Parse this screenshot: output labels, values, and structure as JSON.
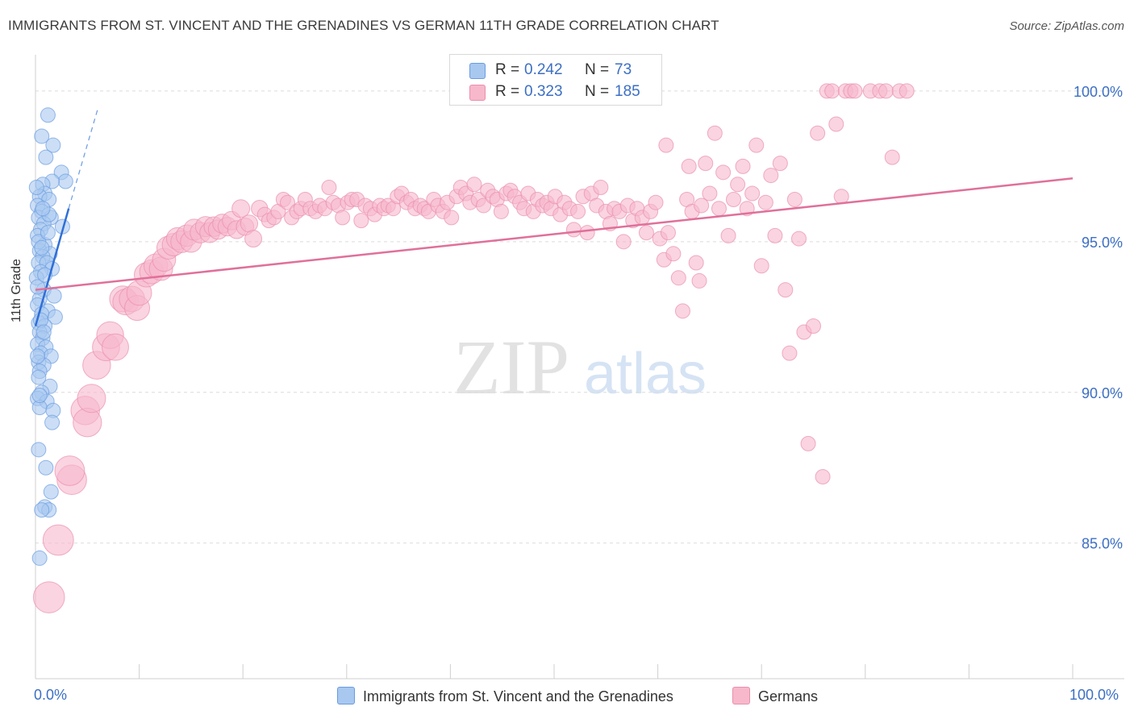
{
  "header": {
    "title": "IMMIGRANTS FROM ST. VINCENT AND THE GRENADINES VS GERMAN 11TH GRADE CORRELATION CHART",
    "source": "Source: ZipAtlas.com"
  },
  "watermark": {
    "zip": "ZIP",
    "atlas": "atlas"
  },
  "legend": {
    "r_label": "R =",
    "n_label": "N =",
    "rows": [
      {
        "r": "0.242",
        "n": "73",
        "color": "#a8c8f0",
        "border": "#6a9be0"
      },
      {
        "r": "0.323",
        "n": "185",
        "color": "#f7b8cb",
        "border": "#ea8fae"
      }
    ]
  },
  "chart_data": {
    "type": "scatter",
    "title": "IMMIGRANTS FROM ST. VINCENT AND THE GRENADINES VS GERMAN 11TH GRADE CORRELATION CHART",
    "xlabel": "",
    "ylabel": "11th Grade",
    "xlim": [
      0,
      100
    ],
    "ylim": [
      80.5,
      101.2
    ],
    "x_ticks": [
      0,
      10,
      20,
      30,
      40,
      50,
      60,
      70,
      80,
      90,
      100
    ],
    "x_tick_labels": [
      "0.0%",
      "100.0%"
    ],
    "y_ticks": [
      85,
      90,
      95,
      100
    ],
    "y_tick_labels": [
      "85.0%",
      "90.0%",
      "95.0%",
      "100.0%"
    ],
    "grid": true,
    "series": [
      {
        "name": "Immigrants from St. Vincent and the Grenadines",
        "color": "#6a9be0",
        "fill": "#a8c8f0",
        "trend": {
          "x": [
            0,
            3.2
          ],
          "y": [
            92.2,
            96.1
          ],
          "dash_to": [
            6.0,
            99.4
          ]
        },
        "points": [
          [
            1.2,
            99.2
          ],
          [
            0.6,
            98.5
          ],
          [
            1.7,
            98.2
          ],
          [
            1.0,
            97.8
          ],
          [
            2.5,
            97.3
          ],
          [
            2.9,
            97.0
          ],
          [
            1.6,
            97.0
          ],
          [
            0.7,
            96.9
          ],
          [
            0.9,
            96.6
          ],
          [
            0.4,
            96.5
          ],
          [
            1.3,
            96.4
          ],
          [
            0.2,
            96.2
          ],
          [
            0.6,
            96.0
          ],
          [
            1.5,
            95.8
          ],
          [
            0.3,
            95.8
          ],
          [
            0.8,
            95.6
          ],
          [
            2.6,
            95.5
          ],
          [
            0.5,
            95.4
          ],
          [
            0.2,
            95.2
          ],
          [
            0.9,
            94.9
          ],
          [
            0.4,
            94.7
          ],
          [
            1.4,
            94.6
          ],
          [
            0.7,
            94.5
          ],
          [
            0.3,
            94.3
          ],
          [
            1.1,
            94.3
          ],
          [
            1.6,
            94.1
          ],
          [
            0.5,
            94.0
          ],
          [
            0.1,
            93.8
          ],
          [
            0.8,
            93.4
          ],
          [
            0.4,
            93.1
          ],
          [
            0.2,
            92.9
          ],
          [
            1.2,
            92.7
          ],
          [
            0.6,
            92.6
          ],
          [
            1.9,
            92.5
          ],
          [
            0.3,
            92.3
          ],
          [
            0.9,
            92.2
          ],
          [
            0.4,
            92.0
          ],
          [
            0.7,
            91.8
          ],
          [
            0.2,
            91.6
          ],
          [
            1.0,
            91.5
          ],
          [
            0.5,
            91.3
          ],
          [
            1.5,
            91.2
          ],
          [
            0.3,
            91.0
          ],
          [
            0.8,
            90.9
          ],
          [
            0.4,
            90.7
          ],
          [
            1.4,
            90.2
          ],
          [
            0.6,
            90.0
          ],
          [
            0.2,
            89.8
          ],
          [
            1.1,
            89.7
          ],
          [
            0.4,
            89.5
          ],
          [
            1.7,
            89.4
          ],
          [
            1.6,
            89.0
          ],
          [
            0.3,
            88.1
          ],
          [
            1.0,
            87.5
          ],
          [
            1.5,
            86.7
          ],
          [
            0.9,
            86.2
          ],
          [
            1.3,
            86.1
          ],
          [
            0.6,
            86.1
          ],
          [
            0.4,
            84.5
          ],
          [
            0.2,
            93.5
          ],
          [
            1.8,
            93.2
          ],
          [
            0.5,
            92.4
          ],
          [
            0.2,
            91.2
          ],
          [
            0.9,
            93.9
          ],
          [
            0.3,
            95.0
          ],
          [
            1.2,
            95.3
          ],
          [
            0.6,
            94.8
          ],
          [
            0.1,
            96.8
          ],
          [
            0.8,
            92.0
          ],
          [
            0.3,
            90.5
          ],
          [
            1.3,
            95.9
          ],
          [
            0.7,
            96.1
          ],
          [
            0.4,
            89.9
          ]
        ]
      },
      {
        "name": "Germans",
        "color": "#ea8fae",
        "fill": "#f7b8cb",
        "trend": {
          "x": [
            0,
            100
          ],
          "y": [
            93.4,
            97.1
          ]
        },
        "points": [
          [
            1.3,
            83.2
          ],
          [
            2.2,
            85.1
          ],
          [
            3.5,
            87.1
          ],
          [
            3.3,
            87.4
          ],
          [
            4.8,
            89.4
          ],
          [
            5.0,
            89.0
          ],
          [
            5.4,
            89.8
          ],
          [
            5.9,
            90.9
          ],
          [
            6.8,
            91.5
          ],
          [
            7.2,
            91.9
          ],
          [
            7.7,
            91.5
          ],
          [
            8.4,
            93.1
          ],
          [
            8.7,
            93.0
          ],
          [
            9.3,
            93.1
          ],
          [
            9.8,
            92.8
          ],
          [
            10.0,
            93.3
          ],
          [
            10.7,
            93.9
          ],
          [
            11.2,
            94.0
          ],
          [
            11.6,
            94.2
          ],
          [
            12.1,
            94.1
          ],
          [
            12.4,
            94.4
          ],
          [
            12.8,
            94.8
          ],
          [
            13.3,
            94.9
          ],
          [
            13.7,
            95.1
          ],
          [
            14.1,
            95.0
          ],
          [
            14.6,
            95.2
          ],
          [
            15.0,
            95.0
          ],
          [
            15.3,
            95.4
          ],
          [
            15.9,
            95.3
          ],
          [
            16.4,
            95.5
          ],
          [
            16.8,
            95.3
          ],
          [
            17.2,
            95.5
          ],
          [
            17.6,
            95.4
          ],
          [
            18.0,
            95.6
          ],
          [
            18.5,
            95.5
          ],
          [
            18.9,
            95.7
          ],
          [
            19.4,
            95.4
          ],
          [
            19.8,
            96.1
          ],
          [
            20.2,
            95.5
          ],
          [
            20.6,
            95.6
          ],
          [
            21.0,
            95.1
          ],
          [
            21.6,
            96.1
          ],
          [
            22.1,
            95.9
          ],
          [
            22.5,
            95.7
          ],
          [
            23.0,
            95.8
          ],
          [
            23.4,
            96.0
          ],
          [
            23.9,
            96.4
          ],
          [
            24.3,
            96.3
          ],
          [
            24.7,
            95.8
          ],
          [
            25.2,
            96.0
          ],
          [
            25.6,
            96.1
          ],
          [
            26.0,
            96.4
          ],
          [
            26.5,
            96.1
          ],
          [
            27.0,
            96.0
          ],
          [
            27.4,
            96.2
          ],
          [
            27.9,
            96.1
          ],
          [
            28.3,
            96.8
          ],
          [
            28.7,
            96.3
          ],
          [
            29.2,
            96.2
          ],
          [
            29.6,
            95.8
          ],
          [
            30.1,
            96.3
          ],
          [
            30.5,
            96.4
          ],
          [
            31.0,
            96.4
          ],
          [
            31.4,
            95.7
          ],
          [
            31.8,
            96.2
          ],
          [
            32.3,
            96.1
          ],
          [
            32.7,
            95.9
          ],
          [
            33.2,
            96.2
          ],
          [
            33.6,
            96.1
          ],
          [
            34.0,
            96.2
          ],
          [
            34.5,
            96.1
          ],
          [
            34.9,
            96.5
          ],
          [
            35.3,
            96.6
          ],
          [
            35.8,
            96.3
          ],
          [
            36.2,
            96.4
          ],
          [
            36.6,
            96.1
          ],
          [
            37.1,
            96.2
          ],
          [
            37.5,
            96.1
          ],
          [
            37.9,
            96.0
          ],
          [
            38.4,
            96.4
          ],
          [
            38.8,
            96.2
          ],
          [
            39.3,
            96.0
          ],
          [
            39.7,
            96.3
          ],
          [
            40.1,
            95.8
          ],
          [
            40.6,
            96.5
          ],
          [
            41.0,
            96.8
          ],
          [
            41.5,
            96.6
          ],
          [
            41.9,
            96.3
          ],
          [
            42.3,
            96.9
          ],
          [
            42.7,
            96.4
          ],
          [
            43.2,
            96.2
          ],
          [
            43.6,
            96.7
          ],
          [
            44.1,
            96.5
          ],
          [
            44.5,
            96.4
          ],
          [
            44.9,
            96.0
          ],
          [
            45.4,
            96.6
          ],
          [
            45.8,
            96.7
          ],
          [
            46.2,
            96.5
          ],
          [
            46.7,
            96.3
          ],
          [
            47.1,
            96.1
          ],
          [
            47.5,
            96.6
          ],
          [
            48.0,
            96.0
          ],
          [
            48.4,
            96.4
          ],
          [
            48.9,
            96.2
          ],
          [
            49.3,
            96.3
          ],
          [
            49.7,
            96.1
          ],
          [
            50.1,
            96.5
          ],
          [
            50.6,
            95.9
          ],
          [
            51.0,
            96.3
          ],
          [
            51.5,
            96.1
          ],
          [
            51.9,
            95.4
          ],
          [
            52.3,
            96.0
          ],
          [
            52.8,
            96.5
          ],
          [
            53.2,
            95.3
          ],
          [
            53.6,
            96.6
          ],
          [
            54.1,
            96.2
          ],
          [
            54.5,
            96.8
          ],
          [
            55.0,
            96.0
          ],
          [
            55.4,
            95.6
          ],
          [
            55.8,
            96.1
          ],
          [
            56.3,
            96.0
          ],
          [
            56.7,
            95.0
          ],
          [
            57.1,
            96.2
          ],
          [
            57.6,
            95.7
          ],
          [
            58.0,
            96.1
          ],
          [
            58.5,
            95.8
          ],
          [
            58.9,
            95.3
          ],
          [
            59.3,
            96.0
          ],
          [
            59.8,
            96.3
          ],
          [
            60.2,
            95.1
          ],
          [
            60.6,
            94.4
          ],
          [
            61.0,
            95.3
          ],
          [
            61.5,
            94.6
          ],
          [
            62.0,
            93.8
          ],
          [
            62.4,
            92.7
          ],
          [
            62.8,
            96.4
          ],
          [
            63.3,
            96.0
          ],
          [
            63.7,
            94.3
          ],
          [
            64.2,
            96.2
          ],
          [
            64.6,
            97.6
          ],
          [
            65.0,
            96.6
          ],
          [
            65.5,
            98.6
          ],
          [
            65.9,
            96.1
          ],
          [
            66.3,
            97.3
          ],
          [
            66.8,
            95.2
          ],
          [
            67.3,
            96.4
          ],
          [
            67.7,
            96.9
          ],
          [
            68.2,
            97.5
          ],
          [
            68.6,
            96.1
          ],
          [
            69.1,
            96.6
          ],
          [
            69.5,
            98.2
          ],
          [
            70.0,
            94.2
          ],
          [
            70.4,
            96.3
          ],
          [
            70.9,
            97.2
          ],
          [
            71.3,
            95.2
          ],
          [
            71.8,
            97.6
          ],
          [
            72.3,
            93.4
          ],
          [
            72.7,
            91.3
          ],
          [
            73.2,
            96.4
          ],
          [
            73.6,
            95.1
          ],
          [
            74.1,
            92.0
          ],
          [
            74.5,
            88.3
          ],
          [
            75.0,
            92.2
          ],
          [
            75.4,
            98.6
          ],
          [
            75.9,
            87.2
          ],
          [
            76.3,
            100.0
          ],
          [
            76.8,
            100.0
          ],
          [
            77.2,
            98.9
          ],
          [
            77.7,
            96.5
          ],
          [
            78.1,
            100.0
          ],
          [
            78.6,
            100.0
          ],
          [
            79.0,
            100.0
          ],
          [
            80.5,
            100.0
          ],
          [
            81.4,
            100.0
          ],
          [
            82.0,
            100.0
          ],
          [
            82.6,
            97.8
          ],
          [
            83.3,
            100.0
          ],
          [
            84.0,
            100.0
          ],
          [
            63.0,
            97.5
          ],
          [
            64.0,
            93.7
          ],
          [
            60.8,
            98.2
          ]
        ]
      }
    ]
  },
  "bottom_legend": {
    "items": [
      {
        "label": "Immigrants from St. Vincent and the Grenadines"
      },
      {
        "label": "Germans"
      }
    ]
  }
}
